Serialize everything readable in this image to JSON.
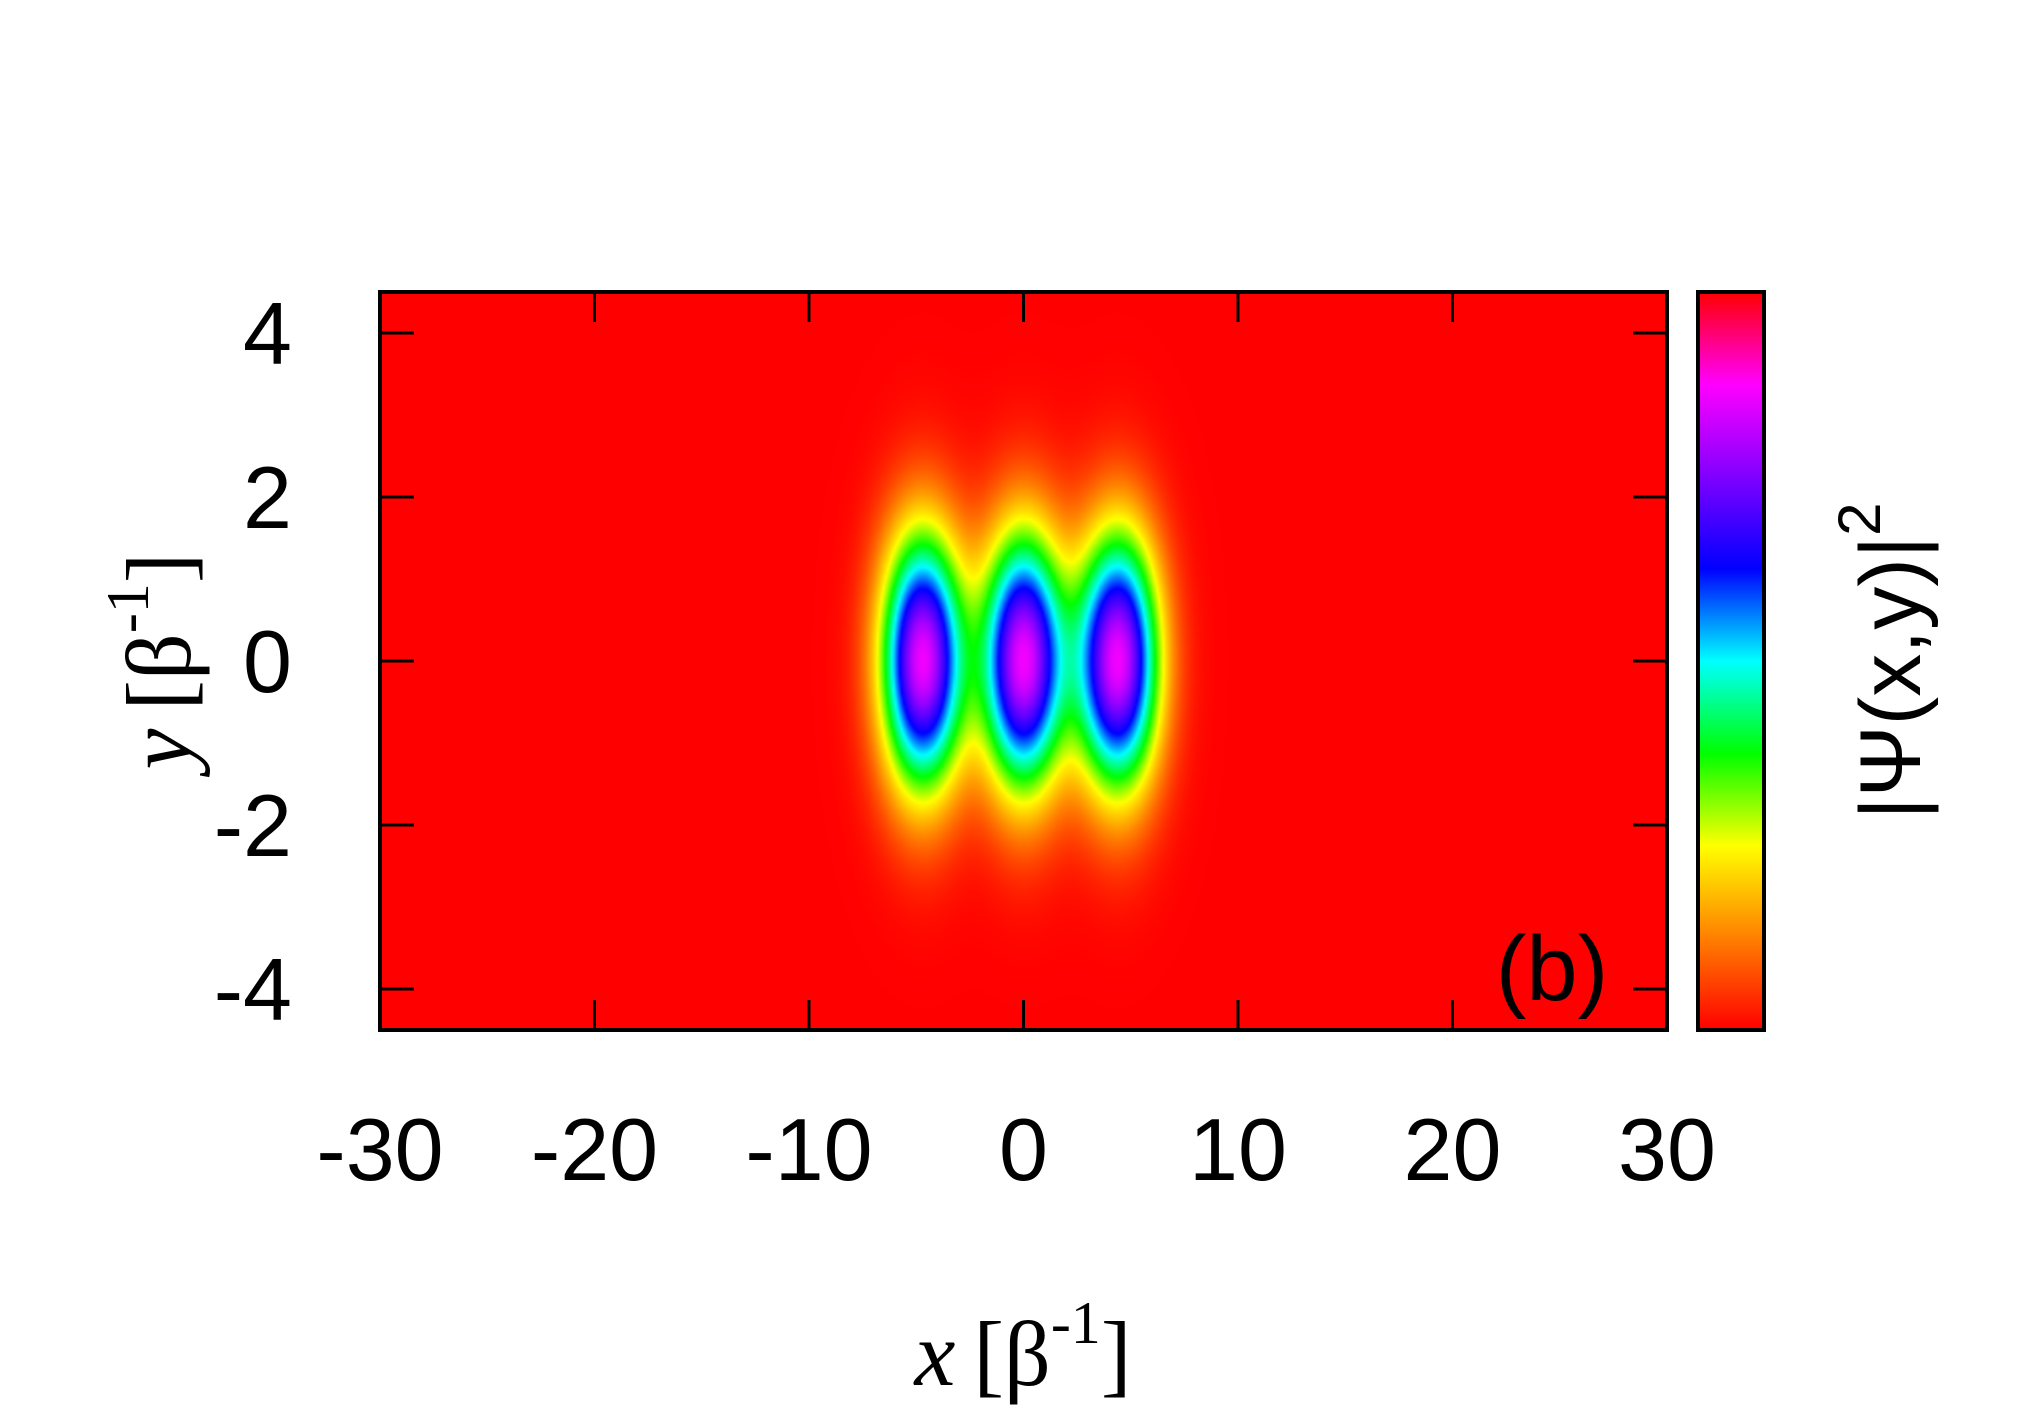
{
  "chart_data": {
    "type": "heatmap",
    "title": "",
    "panel_label": "(b)",
    "xlabel": {
      "symbol": "x",
      "unit_open": "[β",
      "unit_sup": "-1",
      "unit_close": "]"
    },
    "ylabel": {
      "symbol": "y",
      "unit_open": "[β",
      "unit_sup": "-1",
      "unit_close": "]"
    },
    "colorbar_label": {
      "text": "|Ψ(x,y)|",
      "sup": "2"
    },
    "xlim": [
      -30,
      30
    ],
    "ylim": [
      -4.5,
      4.5
    ],
    "x_ticks": [
      -30,
      -20,
      -10,
      0,
      10,
      20,
      30
    ],
    "y_ticks": [
      -4,
      -2,
      0,
      2,
      4
    ],
    "x_tick_labels": [
      "-30",
      "-20",
      "-10",
      "0",
      "10",
      "20",
      "30"
    ],
    "y_tick_labels": [
      "-4",
      "-2",
      "0",
      "2",
      "4"
    ],
    "colormap": [
      "#ff0000",
      "#ff8000",
      "#ffff00",
      "#00ff00",
      "#00ffff",
      "#0000ff",
      "#8000ff",
      "#ff00ff",
      "#ff0000"
    ],
    "background_color": "#ff0000",
    "peaks": [
      {
        "x": -4.7,
        "y": 0,
        "sigma_x": 1.35,
        "sigma_y": 1.1
      },
      {
        "x": 0,
        "y": 0,
        "sigma_x": 1.35,
        "sigma_y": 1.1
      },
      {
        "x": 4.4,
        "y": 0,
        "sigma_x": 1.35,
        "sigma_y": 1.1
      }
    ],
    "grid": false,
    "legend": "none"
  }
}
